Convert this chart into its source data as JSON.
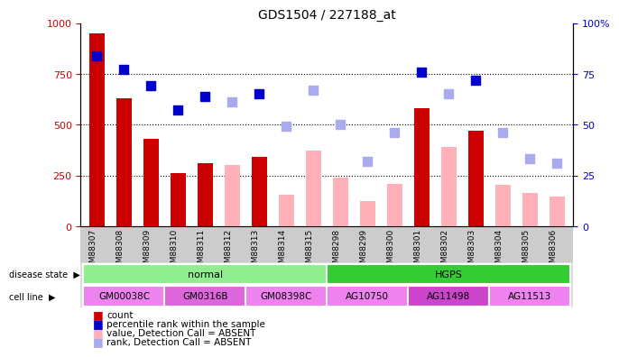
{
  "title": "GDS1504 / 227188_at",
  "samples": [
    "GSM88307",
    "GSM88308",
    "GSM88309",
    "GSM88310",
    "GSM88311",
    "GSM88312",
    "GSM88313",
    "GSM88314",
    "GSM88315",
    "GSM88298",
    "GSM88299",
    "GSM88300",
    "GSM88301",
    "GSM88302",
    "GSM88303",
    "GSM88304",
    "GSM88305",
    "GSM88306"
  ],
  "count_values": [
    950,
    630,
    430,
    260,
    310,
    null,
    340,
    null,
    null,
    null,
    null,
    null,
    580,
    null,
    470,
    null,
    null,
    null
  ],
  "count_absent": [
    null,
    null,
    null,
    null,
    null,
    300,
    null,
    155,
    370,
    240,
    125,
    210,
    null,
    390,
    null,
    205,
    165,
    145
  ],
  "rank_values": [
    84,
    77,
    69,
    57,
    64,
    null,
    65,
    null,
    null,
    null,
    null,
    null,
    76,
    null,
    72,
    null,
    null,
    null
  ],
  "rank_absent": [
    null,
    null,
    null,
    null,
    null,
    61,
    null,
    49,
    67,
    50,
    32,
    46,
    null,
    65,
    null,
    46,
    33,
    31
  ],
  "disease_state_groups": [
    {
      "label": "normal",
      "start": 0,
      "end": 9,
      "color": "#90ee90"
    },
    {
      "label": "HGPS",
      "start": 9,
      "end": 18,
      "color": "#33cc33"
    }
  ],
  "cell_line_groups": [
    {
      "label": "GM00038C",
      "start": 0,
      "end": 3,
      "color": "#ee82ee"
    },
    {
      "label": "GM0316B",
      "start": 3,
      "end": 6,
      "color": "#dd66dd"
    },
    {
      "label": "GM08398C",
      "start": 6,
      "end": 9,
      "color": "#ee82ee"
    },
    {
      "label": "AG10750",
      "start": 9,
      "end": 12,
      "color": "#ee82ee"
    },
    {
      "label": "AG11498",
      "start": 12,
      "end": 15,
      "color": "#cc44cc"
    },
    {
      "label": "AG11513",
      "start": 15,
      "end": 18,
      "color": "#ee82ee"
    }
  ],
  "ylim": [
    0,
    1000
  ],
  "ylim_right": [
    0,
    100
  ],
  "yticks_left": [
    0,
    250,
    500,
    750,
    1000
  ],
  "yticks_right": [
    0,
    25,
    50,
    75,
    100
  ],
  "count_color": "#cc0000",
  "count_absent_color": "#ffb0b8",
  "rank_color": "#0000cc",
  "rank_absent_color": "#aaaaee",
  "bar_width": 0.55,
  "marker_size": 48,
  "xticklabel_bg": "#cccccc",
  "label_row_bg": "#dddddd"
}
